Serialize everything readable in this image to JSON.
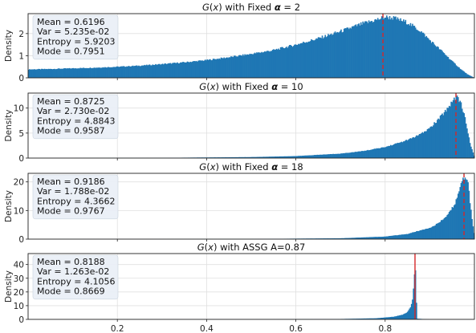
{
  "chart_data": [
    {
      "type": "histogram",
      "title_prefix": "G(x) with Fixed ",
      "title_symbol": "α",
      "title_suffix": " = 2",
      "ylabel": "Density",
      "xlim": [
        0.0,
        1.0
      ],
      "ylim": [
        0,
        2.9
      ],
      "yticks": [
        0,
        1,
        2
      ],
      "grid": true,
      "stats": [
        "Mean = 0.6196",
        "Var = 5.235e-02",
        "Entropy = 5.9203",
        "Mode = 0.7951"
      ],
      "mode_line": 0.7951,
      "mode_line_style": "dashed",
      "density_points": [
        [
          0.0,
          0.38
        ],
        [
          0.05,
          0.4
        ],
        [
          0.1,
          0.43
        ],
        [
          0.15,
          0.46
        ],
        [
          0.2,
          0.5
        ],
        [
          0.25,
          0.55
        ],
        [
          0.3,
          0.62
        ],
        [
          0.35,
          0.7
        ],
        [
          0.4,
          0.8
        ],
        [
          0.45,
          0.93
        ],
        [
          0.5,
          1.08
        ],
        [
          0.55,
          1.25
        ],
        [
          0.6,
          1.5
        ],
        [
          0.65,
          1.78
        ],
        [
          0.7,
          2.1
        ],
        [
          0.75,
          2.45
        ],
        [
          0.78,
          2.62
        ],
        [
          0.8,
          2.75
        ],
        [
          0.82,
          2.7
        ],
        [
          0.85,
          2.5
        ],
        [
          0.88,
          2.1
        ],
        [
          0.9,
          1.7
        ],
        [
          0.93,
          1.15
        ],
        [
          0.95,
          0.75
        ],
        [
          0.97,
          0.38
        ],
        [
          0.985,
          0.15
        ],
        [
          1.0,
          0.0
        ]
      ]
    },
    {
      "type": "histogram",
      "title_prefix": "G(x) with Fixed ",
      "title_symbol": "α",
      "title_suffix": " = 10",
      "ylabel": "Density",
      "xlim": [
        0.0,
        1.0
      ],
      "ylim": [
        0,
        13.0
      ],
      "yticks": [
        0,
        5,
        10
      ],
      "grid": true,
      "stats": [
        "Mean = 0.8725",
        "Var = 2.730e-02",
        "Entropy = 4.8843",
        "Mode = 0.9587"
      ],
      "mode_line": 0.9587,
      "mode_line_style": "dashed",
      "density_points": [
        [
          0.0,
          0.0
        ],
        [
          0.3,
          0.05
        ],
        [
          0.5,
          0.2
        ],
        [
          0.6,
          0.4
        ],
        [
          0.7,
          0.9
        ],
        [
          0.75,
          1.4
        ],
        [
          0.8,
          2.2
        ],
        [
          0.85,
          3.6
        ],
        [
          0.88,
          4.8
        ],
        [
          0.9,
          6.0
        ],
        [
          0.92,
          7.8
        ],
        [
          0.94,
          10.0
        ],
        [
          0.955,
          12.0
        ],
        [
          0.962,
          12.2
        ],
        [
          0.97,
          11.0
        ],
        [
          0.98,
          7.5
        ],
        [
          0.99,
          3.0
        ],
        [
          1.0,
          0.2
        ]
      ]
    },
    {
      "type": "histogram",
      "title_prefix": "G(x) with Fixed ",
      "title_symbol": "α",
      "title_suffix": " = 18",
      "ylabel": "Density",
      "xlim": [
        0.0,
        1.0
      ],
      "ylim": [
        0,
        23.0
      ],
      "yticks": [
        0,
        10,
        20
      ],
      "grid": true,
      "stats": [
        "Mean = 0.9186",
        "Var = 1.788e-02",
        "Entropy = 4.3662",
        "Mode = 0.9767"
      ],
      "mode_line": 0.9767,
      "mode_line_style": "dashed",
      "density_points": [
        [
          0.0,
          0.0
        ],
        [
          0.5,
          0.05
        ],
        [
          0.7,
          0.3
        ],
        [
          0.8,
          0.9
        ],
        [
          0.85,
          1.8
        ],
        [
          0.9,
          4.0
        ],
        [
          0.92,
          5.6
        ],
        [
          0.94,
          8.5
        ],
        [
          0.955,
          12.0
        ],
        [
          0.965,
          16.0
        ],
        [
          0.972,
          20.0
        ],
        [
          0.978,
          22.0
        ],
        [
          0.985,
          20.5
        ],
        [
          0.99,
          13.0
        ],
        [
          0.995,
          6.0
        ],
        [
          1.0,
          1.0
        ]
      ]
    },
    {
      "type": "histogram",
      "title_prefix": "G(x) with ASSG A=0.87",
      "title_symbol": "",
      "title_suffix": "",
      "ylabel": "Density",
      "xlim": [
        0.0,
        1.0
      ],
      "ylim": [
        0,
        48.0
      ],
      "yticks": [
        0,
        10,
        20,
        30,
        40
      ],
      "xticks": [
        0.2,
        0.4,
        0.6,
        0.8
      ],
      "grid": true,
      "stats": [
        "Mean = 0.8188",
        "Var = 1.263e-02",
        "Entropy = 4.1056",
        "Mode = 0.8669"
      ],
      "mode_line": 0.8669,
      "mode_line_style": "solid",
      "density_points": [
        [
          0.0,
          0.0
        ],
        [
          0.5,
          0.05
        ],
        [
          0.7,
          0.3
        ],
        [
          0.78,
          0.8
        ],
        [
          0.82,
          2.0
        ],
        [
          0.84,
          3.5
        ],
        [
          0.85,
          5.5
        ],
        [
          0.857,
          9.0
        ],
        [
          0.862,
          16.0
        ],
        [
          0.865,
          30.0
        ],
        [
          0.867,
          37.0
        ],
        [
          0.869,
          34.0
        ],
        [
          0.87,
          12.0
        ],
        [
          0.872,
          0.5
        ],
        [
          0.9,
          0.0
        ],
        [
          1.0,
          0.0
        ]
      ]
    }
  ],
  "colors": {
    "bar": "#1f77b4",
    "mode_line": "#d62728",
    "stats_box": "#e9eff6"
  }
}
